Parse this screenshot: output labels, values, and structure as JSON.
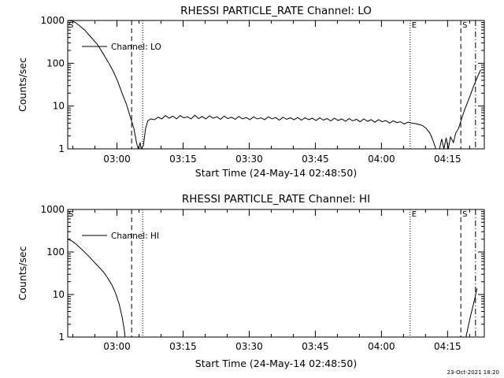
{
  "footer": {
    "timestamp": "23-Oct-2021 18:20"
  },
  "chart_data": [
    {
      "type": "line",
      "title": "RHESSI PARTICLE_RATE Channel: LO",
      "xlabel": "Start Time (24-May-14 02:48:50)",
      "ylabel": "Counts/sec",
      "yscale": "log",
      "ylim": [
        1,
        1000
      ],
      "xlim": [
        0,
        5670
      ],
      "x_ticks": [
        {
          "t": 670,
          "label": "03:00"
        },
        {
          "t": 1570,
          "label": "03:15"
        },
        {
          "t": 2470,
          "label": "03:30"
        },
        {
          "t": 3370,
          "label": "03:45"
        },
        {
          "t": 4270,
          "label": "04:00"
        },
        {
          "t": 5170,
          "label": "04:15"
        }
      ],
      "y_ticks": [
        {
          "v": 1,
          "label": "1"
        },
        {
          "v": 10,
          "label": "10"
        },
        {
          "v": 100,
          "label": "100"
        },
        {
          "v": 1000,
          "label": "1000"
        }
      ],
      "legend": {
        "label": "Channel: LO",
        "placement": "top-left"
      },
      "markers": [
        {
          "t": 0,
          "label": "S",
          "style": "none"
        },
        {
          "t": 870,
          "label": "",
          "style": "dashed"
        },
        {
          "t": 1020,
          "label": "",
          "style": "dotted"
        },
        {
          "t": 4660,
          "label": "E",
          "style": "dotted"
        },
        {
          "t": 5350,
          "label": "S",
          "style": "dashed"
        },
        {
          "t": 5550,
          "label": "",
          "style": "dashdot"
        }
      ],
      "series": [
        {
          "name": "Channel: LO",
          "points": [
            [
              0,
              1000
            ],
            [
              80,
              950
            ],
            [
              150,
              780
            ],
            [
              230,
              600
            ],
            [
              310,
              420
            ],
            [
              400,
              280
            ],
            [
              480,
              170
            ],
            [
              560,
              100
            ],
            [
              620,
              65
            ],
            [
              680,
              38
            ],
            [
              740,
              20
            ],
            [
              800,
              11
            ],
            [
              860,
              5
            ],
            [
              900,
              3
            ],
            [
              940,
              1.3
            ],
            [
              960,
              1
            ],
            [
              985,
              1.4
            ],
            [
              1000,
              1
            ],
            [
              1030,
              1.2
            ],
            [
              1060,
              3
            ],
            [
              1090,
              4.5
            ],
            [
              1130,
              5
            ],
            [
              1180,
              4.8
            ],
            [
              1230,
              5.5
            ],
            [
              1280,
              5
            ],
            [
              1330,
              6
            ],
            [
              1380,
              5.2
            ],
            [
              1430,
              5.8
            ],
            [
              1480,
              5
            ],
            [
              1530,
              6
            ],
            [
              1580,
              5.3
            ],
            [
              1630,
              5.6
            ],
            [
              1680,
              5
            ],
            [
              1730,
              6.1
            ],
            [
              1780,
              5.1
            ],
            [
              1830,
              5.7
            ],
            [
              1880,
              5
            ],
            [
              1930,
              5.9
            ],
            [
              1980,
              5.2
            ],
            [
              2030,
              5.6
            ],
            [
              2080,
              4.9
            ],
            [
              2130,
              5.8
            ],
            [
              2180,
              5.1
            ],
            [
              2230,
              5.5
            ],
            [
              2280,
              4.9
            ],
            [
              2330,
              5.7
            ],
            [
              2380,
              5
            ],
            [
              2430,
              5.4
            ],
            [
              2480,
              4.8
            ],
            [
              2530,
              5.6
            ],
            [
              2580,
              5
            ],
            [
              2630,
              5.3
            ],
            [
              2680,
              4.8
            ],
            [
              2730,
              5.6
            ],
            [
              2780,
              5
            ],
            [
              2830,
              5.4
            ],
            [
              2880,
              4.7
            ],
            [
              2930,
              5.5
            ],
            [
              2980,
              4.9
            ],
            [
              3030,
              5.3
            ],
            [
              3080,
              4.8
            ],
            [
              3130,
              5.4
            ],
            [
              3180,
              4.7
            ],
            [
              3230,
              5.3
            ],
            [
              3280,
              4.8
            ],
            [
              3330,
              5.2
            ],
            [
              3380,
              4.6
            ],
            [
              3430,
              5.3
            ],
            [
              3480,
              4.7
            ],
            [
              3530,
              5.1
            ],
            [
              3580,
              4.5
            ],
            [
              3630,
              5.2
            ],
            [
              3680,
              4.6
            ],
            [
              3730,
              5
            ],
            [
              3780,
              4.4
            ],
            [
              3830,
              5.1
            ],
            [
              3880,
              4.5
            ],
            [
              3930,
              4.9
            ],
            [
              3980,
              4.3
            ],
            [
              4030,
              5
            ],
            [
              4080,
              4.4
            ],
            [
              4130,
              4.8
            ],
            [
              4180,
              4.2
            ],
            [
              4230,
              4.8
            ],
            [
              4280,
              4.3
            ],
            [
              4330,
              4.6
            ],
            [
              4380,
              4
            ],
            [
              4430,
              4.5
            ],
            [
              4480,
              4.1
            ],
            [
              4530,
              4.3
            ],
            [
              4580,
              3.8
            ],
            [
              4630,
              4.2
            ],
            [
              4680,
              4
            ],
            [
              4730,
              3.9
            ],
            [
              4780,
              3.7
            ],
            [
              4830,
              3.5
            ],
            [
              4880,
              3
            ],
            [
              4930,
              2.3
            ],
            [
              4970,
              1.6
            ],
            [
              5010,
              1
            ],
            [
              5060,
              1
            ],
            [
              5090,
              1.7
            ],
            [
              5120,
              1
            ],
            [
              5150,
              1.8
            ],
            [
              5180,
              1
            ],
            [
              5210,
              1.9
            ],
            [
              5250,
              1.4
            ],
            [
              5280,
              2.3
            ],
            [
              5320,
              3
            ],
            [
              5360,
              5
            ],
            [
              5400,
              8
            ],
            [
              5440,
              12
            ],
            [
              5480,
              18
            ],
            [
              5520,
              28
            ],
            [
              5570,
              45
            ],
            [
              5620,
              70
            ]
          ]
        }
      ]
    },
    {
      "type": "line",
      "title": "RHESSI PARTICLE_RATE Channel: HI",
      "xlabel": "Start Time (24-May-14 02:48:50)",
      "ylabel": "Counts/sec",
      "yscale": "log",
      "ylim": [
        1,
        1000
      ],
      "xlim": [
        0,
        5670
      ],
      "x_ticks": [
        {
          "t": 670,
          "label": "03:00"
        },
        {
          "t": 1570,
          "label": "03:15"
        },
        {
          "t": 2470,
          "label": "03:30"
        },
        {
          "t": 3370,
          "label": "03:45"
        },
        {
          "t": 4270,
          "label": "04:00"
        },
        {
          "t": 5170,
          "label": "04:15"
        }
      ],
      "y_ticks": [
        {
          "v": 1,
          "label": "1"
        },
        {
          "v": 10,
          "label": "10"
        },
        {
          "v": 100,
          "label": "100"
        },
        {
          "v": 1000,
          "label": "1000"
        }
      ],
      "legend": {
        "label": "Channel: HI",
        "placement": "top-left"
      },
      "markers": [
        {
          "t": 0,
          "label": "S",
          "style": "none"
        },
        {
          "t": 870,
          "label": "",
          "style": "dashed"
        },
        {
          "t": 1020,
          "label": "",
          "style": "dotted"
        },
        {
          "t": 4660,
          "label": "E",
          "style": "dotted"
        },
        {
          "t": 5350,
          "label": "S",
          "style": "dashed"
        },
        {
          "t": 5550,
          "label": "",
          "style": "dashdot"
        }
      ],
      "series": [
        {
          "name": "Channel: HI",
          "points": [
            [
              0,
              200
            ],
            [
              60,
              180
            ],
            [
              120,
              150
            ],
            [
              180,
              120
            ],
            [
              240,
              95
            ],
            [
              300,
              75
            ],
            [
              360,
              58
            ],
            [
              420,
              45
            ],
            [
              480,
              35
            ],
            [
              540,
              25
            ],
            [
              600,
              17
            ],
            [
              650,
              11
            ],
            [
              700,
              6
            ],
            [
              740,
              3
            ],
            [
              770,
              1.5
            ],
            [
              780,
              1
            ]
          ]
        },
        {
          "name": "Channel: HI",
          "points": [
            [
              5420,
              1
            ],
            [
              5480,
              3
            ],
            [
              5540,
              8
            ],
            [
              5570,
              14
            ]
          ]
        }
      ]
    }
  ]
}
